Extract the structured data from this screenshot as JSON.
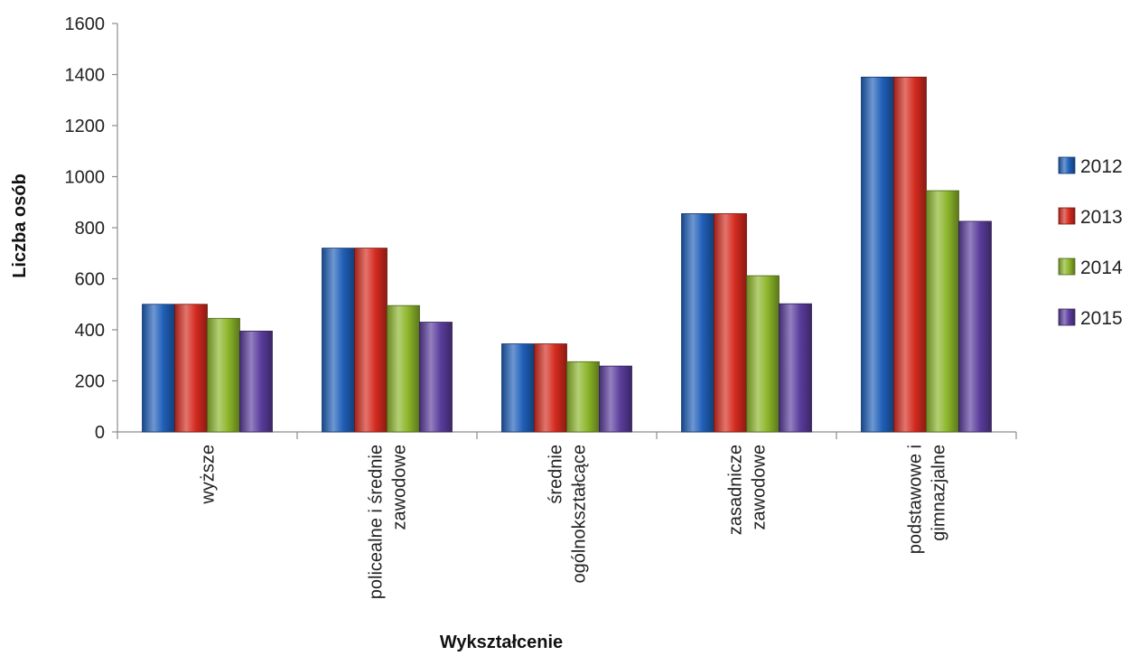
{
  "chart_data": {
    "type": "bar",
    "categories": [
      [
        "wyższe"
      ],
      [
        "policealne i średnie",
        "zawodowe"
      ],
      [
        "średnie",
        "ogólnokształcące"
      ],
      [
        "zasadnicze",
        "zawodowe"
      ],
      [
        "podstawowe i",
        "gimnazjalne"
      ]
    ],
    "series": [
      {
        "name": "2012",
        "values": [
          500,
          720,
          345,
          855,
          1390
        ],
        "color": "#1f5fb8"
      },
      {
        "name": "2013",
        "values": [
          500,
          720,
          345,
          855,
          1390
        ],
        "color": "#d42a1e"
      },
      {
        "name": "2014",
        "values": [
          445,
          495,
          275,
          612,
          945
        ],
        "color": "#8cb52a"
      },
      {
        "name": "2015",
        "values": [
          395,
          430,
          258,
          502,
          825
        ],
        "color": "#5a3c9c"
      }
    ],
    "xlabel": "Wykształcenie",
    "ylabel": "Liczba osób",
    "ylim": [
      0,
      1600
    ],
    "yticks": [
      0,
      200,
      400,
      600,
      800,
      1000,
      1200,
      1400,
      1600
    ],
    "grid": false,
    "legend_position": "right"
  }
}
